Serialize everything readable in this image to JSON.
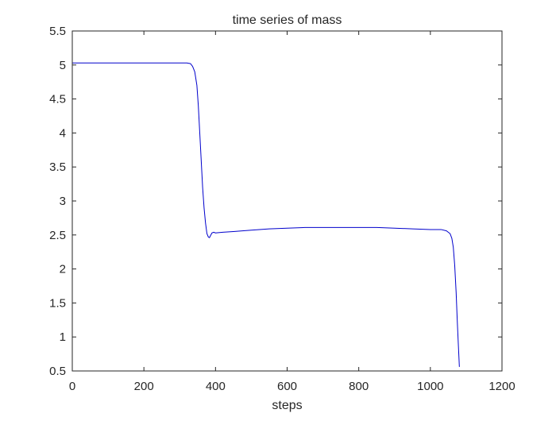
{
  "chart_data": {
    "type": "line",
    "title": "time series of mass",
    "xlabel": "steps",
    "ylabel": "",
    "xlim": [
      0,
      1200
    ],
    "ylim": [
      0.5,
      5.5
    ],
    "xticks": [
      0,
      200,
      400,
      600,
      800,
      1000,
      1200
    ],
    "yticks": [
      0.5,
      1,
      1.5,
      2,
      2.5,
      3,
      3.5,
      4,
      4.5,
      5,
      5.5
    ],
    "xtick_labels": [
      "0",
      "200",
      "400",
      "600",
      "800",
      "1000",
      "1200"
    ],
    "ytick_labels": [
      "0.5",
      "1",
      "1.5",
      "2",
      "2.5",
      "3",
      "3.5",
      "4",
      "4.5",
      "5",
      "5.5"
    ],
    "grid": false,
    "box": true,
    "line_color": "#0000cc",
    "axis_color": "#262626",
    "series": [
      {
        "x": [
          0,
          100,
          200,
          300,
          320,
          330,
          336,
          342,
          348,
          352,
          356,
          360,
          364,
          368,
          372,
          376,
          380,
          383,
          386,
          390,
          395,
          400,
          420,
          450,
          500,
          550,
          600,
          650,
          700,
          750,
          800,
          850,
          900,
          950,
          1000,
          1030,
          1045,
          1055,
          1060,
          1064,
          1068,
          1072,
          1075,
          1078,
          1081
        ],
        "y": [
          5.03,
          5.03,
          5.03,
          5.03,
          5.03,
          5.02,
          4.98,
          4.9,
          4.7,
          4.4,
          4.0,
          3.6,
          3.2,
          2.9,
          2.68,
          2.52,
          2.47,
          2.46,
          2.49,
          2.53,
          2.54,
          2.53,
          2.54,
          2.55,
          2.57,
          2.59,
          2.6,
          2.61,
          2.61,
          2.61,
          2.61,
          2.61,
          2.6,
          2.59,
          2.58,
          2.58,
          2.56,
          2.52,
          2.45,
          2.32,
          2.05,
          1.65,
          1.25,
          0.9,
          0.56
        ]
      }
    ]
  }
}
